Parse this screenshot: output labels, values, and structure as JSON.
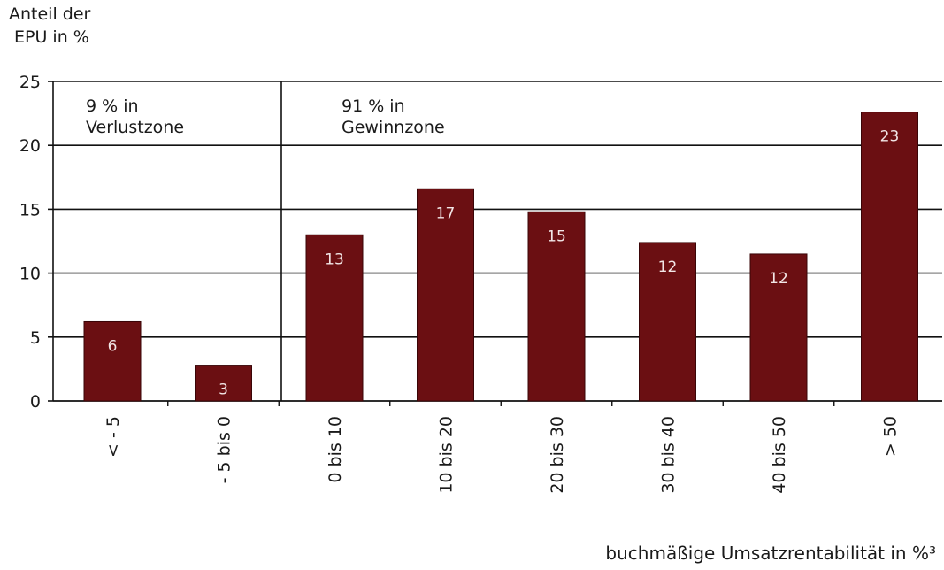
{
  "chart_data": {
    "type": "bar",
    "ylabel_lines": [
      "Anteil der",
      "EPU in %"
    ],
    "xlabel": "buchmäßige Umsatzrentabilität in %³",
    "categories": [
      "< - 5",
      "- 5 bis 0",
      "0 bis 10",
      "10 bis 20",
      "20 bis 30",
      "30 bis 40",
      "40 bis 50",
      "> 50"
    ],
    "values": [
      6.2,
      2.8,
      13.0,
      16.6,
      14.8,
      12.4,
      11.5,
      22.6
    ],
    "data_labels": [
      "6",
      "3",
      "13",
      "17",
      "15",
      "12",
      "12",
      "23"
    ],
    "ylim": [
      0,
      25
    ],
    "yticks": [
      0,
      5,
      10,
      15,
      20,
      25
    ],
    "grid": true,
    "bar_color": "#6b0f12",
    "zones": [
      {
        "lines": [
          "9 % in",
          "Verlustzone"
        ]
      },
      {
        "lines": [
          "91 % in",
          "Gewinnzone"
        ]
      }
    ]
  }
}
